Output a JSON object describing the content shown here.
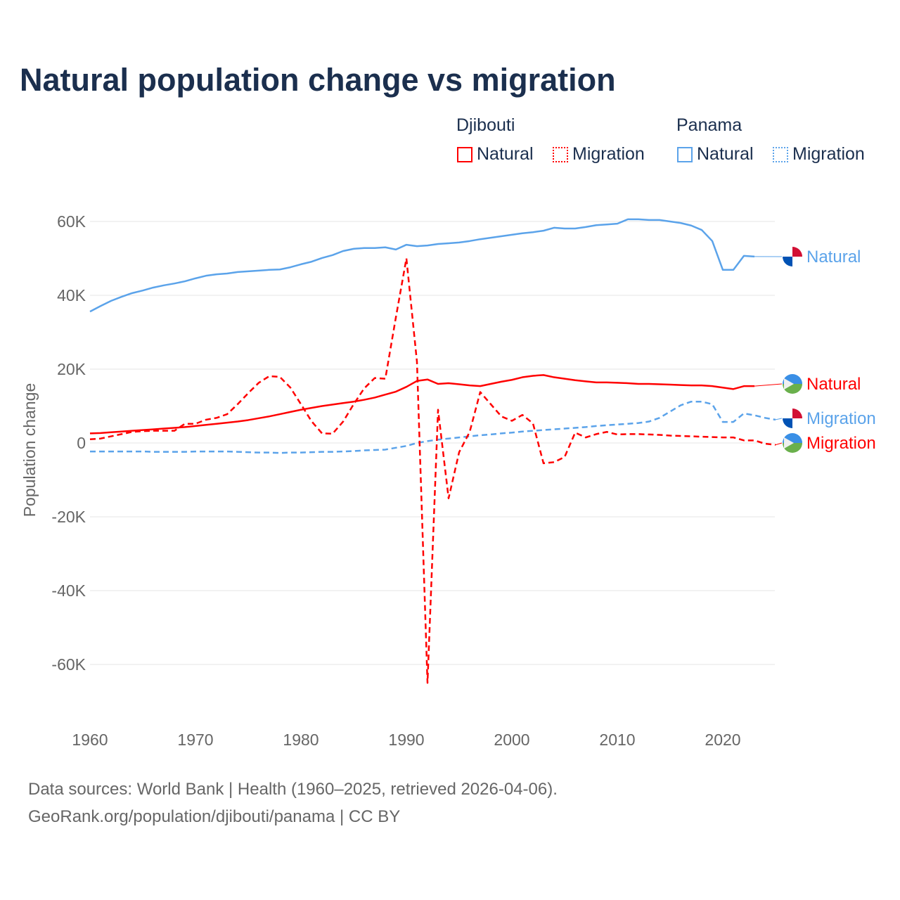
{
  "title": "Natural population change vs migration",
  "legend": {
    "groups": [
      {
        "name": "Djibouti",
        "color": "#ff0000",
        "items": [
          "Natural",
          "Migration"
        ]
      },
      {
        "name": "Panama",
        "color": "#5ba3ea",
        "items": [
          "Natural",
          "Migration"
        ]
      }
    ]
  },
  "footer": {
    "line1": "Data sources: World Bank | Health (1960–2025, retrieved 2026-04-06).",
    "line2": "GeoRank.org/population/djibouti/panama | CC BY"
  },
  "chart_data": {
    "type": "line",
    "title": "Natural population change vs migration",
    "xlabel": "",
    "ylabel": "Population change",
    "xlim": [
      1960,
      2025
    ],
    "ylim": [
      -65000,
      65000
    ],
    "x_ticks": [
      "1960",
      "1970",
      "1980",
      "1990",
      "2000",
      "2010",
      "2020"
    ],
    "y_ticks": [
      {
        "v": 60000,
        "label": "60K"
      },
      {
        "v": 40000,
        "label": "40K"
      },
      {
        "v": 20000,
        "label": "20K"
      },
      {
        "v": 0,
        "label": "0"
      },
      {
        "v": -20000,
        "label": "-20K"
      },
      {
        "v": -40000,
        "label": "-40K"
      },
      {
        "v": -60000,
        "label": "-60K"
      }
    ],
    "grid": true,
    "series": [
      {
        "name": "Panama Natural",
        "label": "Natural",
        "color": "#5ba3ea",
        "dash": false,
        "flag": "panama",
        "start": 1960,
        "values_k": [
          35.6,
          37.1,
          38.5,
          39.6,
          40.6,
          41.3,
          42.1,
          42.7,
          43.2,
          43.8,
          44.6,
          45.3,
          45.7,
          45.9,
          46.3,
          46.5,
          46.7,
          46.9,
          47.0,
          47.6,
          48.4,
          49.1,
          50.1,
          50.9,
          52.0,
          52.6,
          52.8,
          52.8,
          53.0,
          52.4,
          53.7,
          53.3,
          53.5,
          53.9,
          54.1,
          54.3,
          54.7,
          55.2,
          55.6,
          56.0,
          56.4,
          56.8,
          57.1,
          57.5,
          58.3,
          58.1,
          58.1,
          58.5,
          59.0,
          59.2,
          59.4,
          60.6,
          60.6,
          60.4,
          60.4,
          60.0,
          59.6,
          58.9,
          57.7,
          54.7,
          46.9,
          46.9,
          50.7,
          50.5
        ]
      },
      {
        "name": "Djibouti Natural",
        "label": "Natural",
        "color": "#ff0000",
        "dash": false,
        "flag": "djibouti",
        "start": 1960,
        "values_k": [
          2.6,
          2.7,
          2.9,
          3.1,
          3.3,
          3.5,
          3.7,
          3.9,
          4.1,
          4.3,
          4.6,
          4.9,
          5.2,
          5.5,
          5.8,
          6.2,
          6.7,
          7.2,
          7.8,
          8.4,
          9.0,
          9.5,
          10.0,
          10.4,
          10.8,
          11.2,
          11.7,
          12.3,
          13.1,
          13.9,
          15.2,
          16.8,
          17.2,
          16.0,
          16.2,
          15.9,
          15.6,
          15.4,
          16.0,
          16.6,
          17.1,
          17.8,
          18.2,
          18.4,
          17.8,
          17.4,
          17.0,
          16.7,
          16.4,
          16.4,
          16.3,
          16.2,
          16.0,
          16.0,
          15.9,
          15.8,
          15.7,
          15.6,
          15.6,
          15.4,
          15.0,
          14.6,
          15.4,
          15.4
        ]
      },
      {
        "name": "Panama Migration",
        "label": "Migration",
        "color": "#5ba3ea",
        "dash": true,
        "flag": "panama",
        "start": 1960,
        "values_k": [
          -2.3,
          -2.3,
          -2.3,
          -2.3,
          -2.3,
          -2.3,
          -2.4,
          -2.4,
          -2.4,
          -2.4,
          -2.3,
          -2.3,
          -2.3,
          -2.3,
          -2.4,
          -2.5,
          -2.6,
          -2.6,
          -2.7,
          -2.6,
          -2.6,
          -2.5,
          -2.4,
          -2.4,
          -2.3,
          -2.2,
          -2.0,
          -1.9,
          -1.8,
          -1.3,
          -0.8,
          0.0,
          0.5,
          0.9,
          1.2,
          1.5,
          1.8,
          2.1,
          2.3,
          2.6,
          2.8,
          3.1,
          3.3,
          3.5,
          3.7,
          3.9,
          4.1,
          4.3,
          4.6,
          4.8,
          5.0,
          5.2,
          5.4,
          5.8,
          6.8,
          8.5,
          10.2,
          11.2,
          11.2,
          10.5,
          5.7,
          5.7,
          8.0,
          7.5,
          6.8,
          6.3
        ]
      },
      {
        "name": "Djibouti Migration",
        "label": "Migration",
        "color": "#ff0000",
        "dash": true,
        "flag": "djibouti",
        "start": 1960,
        "values_k": [
          1.0,
          1.2,
          1.8,
          2.4,
          3.0,
          3.2,
          3.3,
          3.3,
          3.3,
          5.2,
          5.2,
          6.3,
          6.8,
          7.8,
          10.5,
          13.5,
          16.3,
          18.1,
          17.9,
          15.0,
          10.5,
          5.9,
          2.6,
          2.5,
          5.8,
          10.5,
          14.8,
          17.6,
          17.4,
          34.0,
          50.0,
          22.0,
          -65.0,
          9.0,
          -15.0,
          -2.5,
          3.0,
          13.8,
          10.5,
          7.2,
          6.0,
          7.6,
          5.3,
          -5.5,
          -5.2,
          -3.8,
          2.8,
          1.5,
          2.4,
          3.0,
          2.3,
          2.4,
          2.4,
          2.3,
          2.2,
          2.0,
          1.9,
          1.8,
          1.7,
          1.6,
          1.5,
          1.5,
          0.7,
          0.7,
          -0.2,
          -0.5
        ]
      }
    ]
  }
}
